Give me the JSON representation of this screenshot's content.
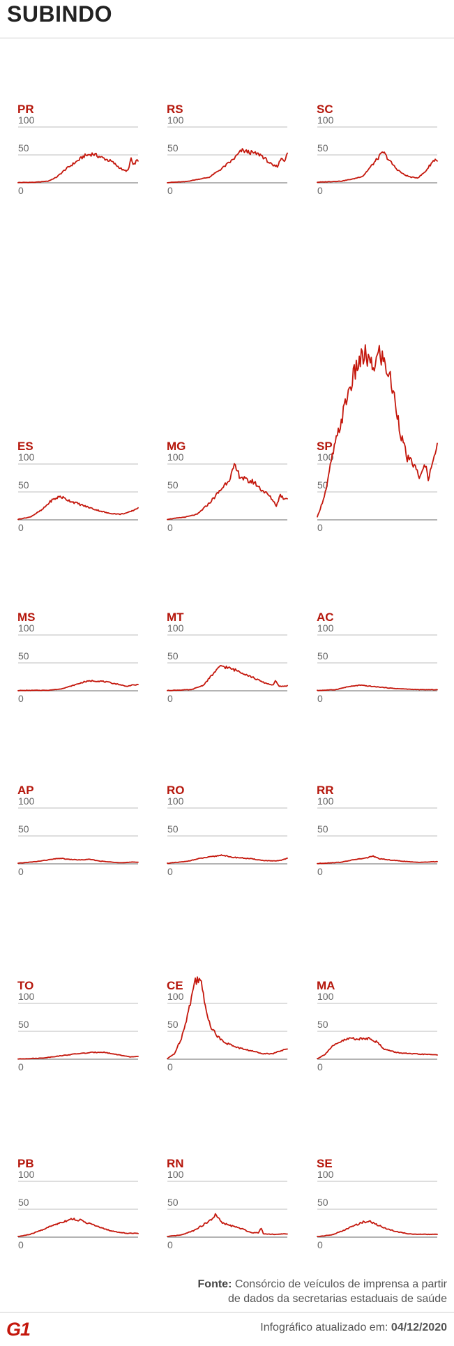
{
  "header": {
    "title": "SUBINDO"
  },
  "footer": {
    "source_label": "Fonte:",
    "source_text_line1": "Consórcio de veículos de imprensa a partir",
    "source_text_line2": "de dados da secretarias estaduais de saúde",
    "updated_label": "Infográfico atualizado em:",
    "updated_date": "04/12/2020",
    "logo": "G1"
  },
  "colors": {
    "line": "#c4170c",
    "state_label": "#b5170c",
    "grid": "#bdbdbd",
    "baseline": "#888888",
    "tick": "#666666"
  },
  "chart_data": [
    {
      "type": "line",
      "title": "PR",
      "ylim": [
        0,
        100
      ],
      "yticks": [
        0,
        50,
        100
      ],
      "keypoints": [
        [
          0,
          0.5
        ],
        [
          0.15,
          1
        ],
        [
          0.25,
          3
        ],
        [
          0.32,
          10
        ],
        [
          0.4,
          25
        ],
        [
          0.5,
          40
        ],
        [
          0.55,
          48
        ],
        [
          0.62,
          52
        ],
        [
          0.7,
          45
        ],
        [
          0.78,
          38
        ],
        [
          0.84,
          28
        ],
        [
          0.88,
          22
        ],
        [
          0.92,
          22
        ],
        [
          0.94,
          45
        ],
        [
          0.96,
          30
        ],
        [
          0.98,
          38
        ],
        [
          1.0,
          40
        ]
      ]
    },
    {
      "type": "line",
      "title": "RS",
      "ylim": [
        0,
        100
      ],
      "yticks": [
        0,
        50,
        100
      ],
      "keypoints": [
        [
          0,
          0.5
        ],
        [
          0.15,
          2
        ],
        [
          0.25,
          6
        ],
        [
          0.35,
          10
        ],
        [
          0.45,
          25
        ],
        [
          0.55,
          42
        ],
        [
          0.62,
          58
        ],
        [
          0.7,
          54
        ],
        [
          0.78,
          50
        ],
        [
          0.84,
          38
        ],
        [
          0.88,
          30
        ],
        [
          0.92,
          30
        ],
        [
          0.95,
          45
        ],
        [
          0.98,
          40
        ],
        [
          1.0,
          52
        ]
      ]
    },
    {
      "type": "line",
      "title": "SC",
      "ylim": [
        0,
        100
      ],
      "yticks": [
        0,
        50,
        100
      ],
      "keypoints": [
        [
          0,
          1
        ],
        [
          0.2,
          3
        ],
        [
          0.3,
          7
        ],
        [
          0.38,
          12
        ],
        [
          0.45,
          30
        ],
        [
          0.52,
          48
        ],
        [
          0.55,
          55
        ],
        [
          0.6,
          40
        ],
        [
          0.66,
          25
        ],
        [
          0.72,
          15
        ],
        [
          0.78,
          10
        ],
        [
          0.84,
          9
        ],
        [
          0.9,
          20
        ],
        [
          0.95,
          35
        ],
        [
          0.98,
          42
        ],
        [
          1.0,
          40
        ]
      ]
    },
    {
      "type": "line",
      "title": "ES",
      "ylim": [
        0,
        100
      ],
      "yticks": [
        0,
        50,
        100
      ],
      "keypoints": [
        [
          0,
          1
        ],
        [
          0.1,
          5
        ],
        [
          0.2,
          18
        ],
        [
          0.28,
          35
        ],
        [
          0.35,
          42
        ],
        [
          0.42,
          35
        ],
        [
          0.55,
          25
        ],
        [
          0.65,
          18
        ],
        [
          0.75,
          12
        ],
        [
          0.85,
          10
        ],
        [
          0.92,
          13
        ],
        [
          0.97,
          18
        ],
        [
          1.0,
          22
        ]
      ]
    },
    {
      "type": "line",
      "title": "MG",
      "ylim": [
        0,
        100
      ],
      "yticks": [
        0,
        50,
        100
      ],
      "keypoints": [
        [
          0,
          1
        ],
        [
          0.15,
          5
        ],
        [
          0.25,
          10
        ],
        [
          0.35,
          30
        ],
        [
          0.45,
          55
        ],
        [
          0.52,
          75
        ],
        [
          0.56,
          95
        ],
        [
          0.6,
          80
        ],
        [
          0.66,
          70
        ],
        [
          0.72,
          68
        ],
        [
          0.78,
          55
        ],
        [
          0.84,
          45
        ],
        [
          0.88,
          35
        ],
        [
          0.91,
          25
        ],
        [
          0.94,
          45
        ],
        [
          0.97,
          38
        ],
        [
          1.0,
          40
        ]
      ]
    },
    {
      "type": "line",
      "title": "SP",
      "ylim": [
        0,
        100
      ],
      "yticks": [
        0,
        50,
        100
      ],
      "keypoints": [
        [
          0,
          5
        ],
        [
          0.04,
          30
        ],
        [
          0.08,
          60
        ],
        [
          0.12,
          110
        ],
        [
          0.18,
          160
        ],
        [
          0.26,
          230
        ],
        [
          0.34,
          280
        ],
        [
          0.4,
          295
        ],
        [
          0.46,
          270
        ],
        [
          0.52,
          300
        ],
        [
          0.6,
          260
        ],
        [
          0.66,
          200
        ],
        [
          0.7,
          150
        ],
        [
          0.75,
          110
        ],
        [
          0.8,
          100
        ],
        [
          0.86,
          75
        ],
        [
          0.9,
          100
        ],
        [
          0.93,
          70
        ],
        [
          0.96,
          110
        ],
        [
          1.0,
          130
        ]
      ]
    },
    {
      "type": "line",
      "title": "MS",
      "ylim": [
        0,
        100
      ],
      "yticks": [
        0,
        50,
        100
      ],
      "keypoints": [
        [
          0,
          0.5
        ],
        [
          0.25,
          1
        ],
        [
          0.35,
          3
        ],
        [
          0.45,
          9
        ],
        [
          0.55,
          16
        ],
        [
          0.62,
          18
        ],
        [
          0.7,
          17
        ],
        [
          0.78,
          14
        ],
        [
          0.85,
          11
        ],
        [
          0.9,
          8
        ],
        [
          0.95,
          10
        ],
        [
          1.0,
          11
        ]
      ]
    },
    {
      "type": "line",
      "title": "MT",
      "ylim": [
        0,
        100
      ],
      "yticks": [
        0,
        50,
        100
      ],
      "keypoints": [
        [
          0,
          0.5
        ],
        [
          0.2,
          2
        ],
        [
          0.3,
          10
        ],
        [
          0.38,
          30
        ],
        [
          0.45,
          45
        ],
        [
          0.52,
          40
        ],
        [
          0.6,
          35
        ],
        [
          0.7,
          25
        ],
        [
          0.8,
          15
        ],
        [
          0.88,
          10
        ],
        [
          0.9,
          18
        ],
        [
          0.93,
          8
        ],
        [
          0.97,
          8
        ],
        [
          1.0,
          9
        ]
      ]
    },
    {
      "type": "line",
      "title": "AC",
      "ylim": [
        0,
        100
      ],
      "yticks": [
        0,
        50,
        100
      ],
      "keypoints": [
        [
          0,
          0.5
        ],
        [
          0.15,
          2
        ],
        [
          0.25,
          7
        ],
        [
          0.35,
          10
        ],
        [
          0.45,
          8
        ],
        [
          0.55,
          6
        ],
        [
          0.65,
          4
        ],
        [
          0.75,
          3
        ],
        [
          0.85,
          2
        ],
        [
          0.95,
          2
        ],
        [
          1.0,
          2
        ]
      ]
    },
    {
      "type": "line",
      "title": "AP",
      "ylim": [
        0,
        100
      ],
      "yticks": [
        0,
        50,
        100
      ],
      "keypoints": [
        [
          0,
          1
        ],
        [
          0.15,
          4
        ],
        [
          0.28,
          8
        ],
        [
          0.35,
          10
        ],
        [
          0.42,
          8
        ],
        [
          0.52,
          7
        ],
        [
          0.6,
          8
        ],
        [
          0.68,
          5
        ],
        [
          0.78,
          3
        ],
        [
          0.88,
          2
        ],
        [
          0.95,
          3
        ],
        [
          1.0,
          3
        ]
      ]
    },
    {
      "type": "line",
      "title": "RO",
      "ylim": [
        0,
        100
      ],
      "yticks": [
        0,
        50,
        100
      ],
      "keypoints": [
        [
          0,
          1
        ],
        [
          0.15,
          4
        ],
        [
          0.28,
          10
        ],
        [
          0.38,
          13
        ],
        [
          0.46,
          16
        ],
        [
          0.52,
          12
        ],
        [
          0.6,
          11
        ],
        [
          0.7,
          9
        ],
        [
          0.8,
          6
        ],
        [
          0.9,
          5
        ],
        [
          0.96,
          7
        ],
        [
          1.0,
          10
        ]
      ]
    },
    {
      "type": "line",
      "title": "RR",
      "ylim": [
        0,
        100
      ],
      "yticks": [
        0,
        50,
        100
      ],
      "keypoints": [
        [
          0,
          0.5
        ],
        [
          0.2,
          3
        ],
        [
          0.32,
          8
        ],
        [
          0.4,
          10
        ],
        [
          0.46,
          14
        ],
        [
          0.52,
          9
        ],
        [
          0.6,
          7
        ],
        [
          0.7,
          5
        ],
        [
          0.8,
          3
        ],
        [
          0.9,
          3
        ],
        [
          1.0,
          4
        ]
      ]
    },
    {
      "type": "line",
      "title": "TO",
      "ylim": [
        0,
        100
      ],
      "yticks": [
        0,
        50,
        100
      ],
      "keypoints": [
        [
          0,
          0.5
        ],
        [
          0.2,
          2
        ],
        [
          0.35,
          6
        ],
        [
          0.5,
          10
        ],
        [
          0.62,
          12
        ],
        [
          0.7,
          13
        ],
        [
          0.78,
          10
        ],
        [
          0.86,
          7
        ],
        [
          0.93,
          4
        ],
        [
          1.0,
          5
        ]
      ]
    },
    {
      "type": "line",
      "title": "CE",
      "ylim": [
        0,
        100
      ],
      "yticks": [
        0,
        50,
        100
      ],
      "keypoints": [
        [
          0,
          1
        ],
        [
          0.06,
          10
        ],
        [
          0.12,
          40
        ],
        [
          0.18,
          90
        ],
        [
          0.23,
          140
        ],
        [
          0.27,
          150
        ],
        [
          0.31,
          100
        ],
        [
          0.36,
          60
        ],
        [
          0.42,
          40
        ],
        [
          0.5,
          28
        ],
        [
          0.6,
          20
        ],
        [
          0.7,
          15
        ],
        [
          0.8,
          10
        ],
        [
          0.88,
          10
        ],
        [
          0.94,
          15
        ],
        [
          1.0,
          18
        ]
      ]
    },
    {
      "type": "line",
      "title": "MA",
      "ylim": [
        0,
        100
      ],
      "yticks": [
        0,
        50,
        100
      ],
      "keypoints": [
        [
          0,
          1
        ],
        [
          0.06,
          8
        ],
        [
          0.12,
          22
        ],
        [
          0.2,
          32
        ],
        [
          0.28,
          38
        ],
        [
          0.36,
          36
        ],
        [
          0.44,
          38
        ],
        [
          0.5,
          30
        ],
        [
          0.56,
          18
        ],
        [
          0.66,
          12
        ],
        [
          0.76,
          10
        ],
        [
          0.86,
          9
        ],
        [
          1.0,
          8
        ]
      ]
    },
    {
      "type": "line",
      "title": "PB",
      "ylim": [
        0,
        100
      ],
      "yticks": [
        0,
        50,
        100
      ],
      "keypoints": [
        [
          0,
          1
        ],
        [
          0.1,
          5
        ],
        [
          0.2,
          13
        ],
        [
          0.3,
          22
        ],
        [
          0.38,
          28
        ],
        [
          0.45,
          33
        ],
        [
          0.52,
          30
        ],
        [
          0.6,
          24
        ],
        [
          0.7,
          16
        ],
        [
          0.8,
          10
        ],
        [
          0.9,
          7
        ],
        [
          1.0,
          7
        ]
      ]
    },
    {
      "type": "line",
      "title": "RN",
      "ylim": [
        0,
        100
      ],
      "yticks": [
        0,
        50,
        100
      ],
      "keypoints": [
        [
          0,
          1
        ],
        [
          0.12,
          4
        ],
        [
          0.22,
          12
        ],
        [
          0.3,
          22
        ],
        [
          0.36,
          30
        ],
        [
          0.4,
          40
        ],
        [
          0.46,
          25
        ],
        [
          0.54,
          20
        ],
        [
          0.62,
          15
        ],
        [
          0.7,
          8
        ],
        [
          0.76,
          8
        ],
        [
          0.78,
          18
        ],
        [
          0.8,
          6
        ],
        [
          0.9,
          5
        ],
        [
          1.0,
          6
        ]
      ]
    },
    {
      "type": "line",
      "title": "SE",
      "ylim": [
        0,
        100
      ],
      "yticks": [
        0,
        50,
        100
      ],
      "keypoints": [
        [
          0,
          1
        ],
        [
          0.12,
          4
        ],
        [
          0.22,
          12
        ],
        [
          0.3,
          20
        ],
        [
          0.38,
          27
        ],
        [
          0.44,
          28
        ],
        [
          0.5,
          22
        ],
        [
          0.58,
          15
        ],
        [
          0.66,
          10
        ],
        [
          0.76,
          6
        ],
        [
          0.86,
          5
        ],
        [
          1.0,
          5
        ]
      ]
    }
  ]
}
